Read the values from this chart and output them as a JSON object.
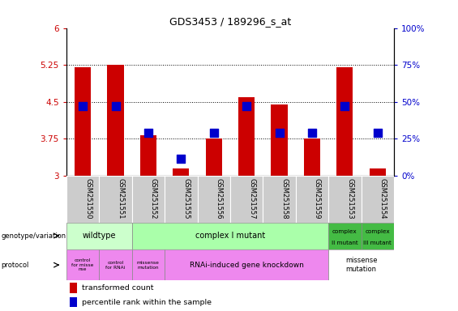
{
  "title": "GDS3453 / 189296_s_at",
  "samples": [
    "GSM251550",
    "GSM251551",
    "GSM251552",
    "GSM251555",
    "GSM251556",
    "GSM251557",
    "GSM251558",
    "GSM251559",
    "GSM251553",
    "GSM251554"
  ],
  "red_values": [
    5.2,
    5.25,
    3.82,
    3.15,
    3.75,
    4.6,
    4.45,
    3.75,
    5.2,
    3.15
  ],
  "blue_values": [
    4.42,
    4.42,
    3.87,
    3.35,
    3.87,
    4.42,
    3.87,
    3.87,
    4.42,
    3.87
  ],
  "ymin": 3.0,
  "ymax": 6.0,
  "yticks_left": [
    3.0,
    3.75,
    4.5,
    5.25,
    6.0
  ],
  "ytick_labels_left": [
    "3",
    "3.75",
    "4.5",
    "5.25",
    "6"
  ],
  "yticks_right": [
    0,
    25,
    50,
    75,
    100
  ],
  "ytick_labels_right": [
    "0%",
    "25%",
    "50%",
    "75%",
    "100%"
  ],
  "red_color": "#CC0000",
  "blue_color": "#0000CC",
  "bar_width": 0.5,
  "dot_size": 50,
  "genotype_colors": {
    "wildtype": "#ccffcc",
    "complex_I_mutant": "#aaffaa",
    "complex_II_mutant": "#44bb44",
    "complex_III_mutant": "#44bb44"
  },
  "protocol_pink": "#ee88ee",
  "xticklabel_bg": "#cccccc",
  "grid_lines": [
    3.75,
    4.5,
    5.25
  ],
  "legend_red_label": "transformed count",
  "legend_blue_label": "percentile rank within the sample"
}
